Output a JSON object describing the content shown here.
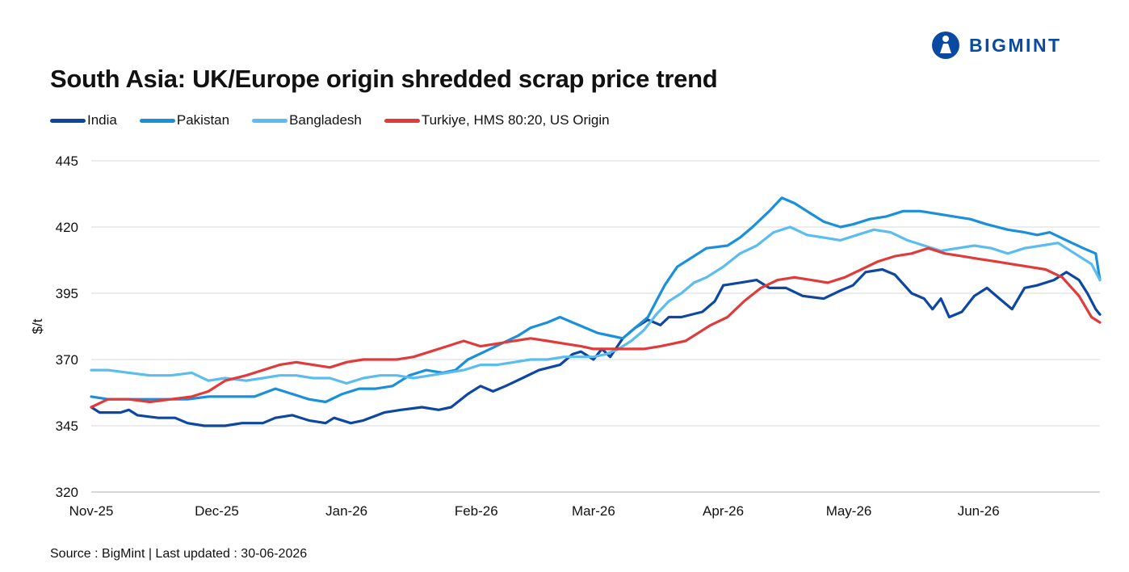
{
  "header": {
    "title": "South Asia: UK/Europe origin shredded scrap price trend",
    "brand": "BIGMINT"
  },
  "footer": {
    "source": "Source : BigMint | Last updated : 30-06-2026"
  },
  "colors": {
    "brand": "#0b4aa2",
    "grid": "#d9d9d9",
    "axis": "#bfbfbf"
  },
  "chart_data": {
    "type": "line",
    "title": "South Asia: UK/Europe origin shredded scrap price trend",
    "ylabel": "$/t",
    "xlabel": "",
    "ylim": [
      320,
      445
    ],
    "yticks": [
      320,
      345,
      370,
      395,
      420,
      445
    ],
    "x_start": "2025-11-01",
    "x_end": "2026-06-30",
    "month_ticks": [
      {
        "label": "Nov-25",
        "date": "2025-11-01"
      },
      {
        "label": "Dec-25",
        "date": "2025-12-01"
      },
      {
        "label": "Jan-26",
        "date": "2026-01-01"
      },
      {
        "label": "Feb-26",
        "date": "2026-02-01"
      },
      {
        "label": "Mar-26",
        "date": "2026-03-01"
      },
      {
        "label": "Apr-26",
        "date": "2026-04-01"
      },
      {
        "label": "May-26",
        "date": "2026-05-01"
      },
      {
        "label": "Jun-26",
        "date": "2026-06-01"
      }
    ],
    "grid": true,
    "legend_position": "top-left",
    "series": [
      {
        "name": "India",
        "color": "#0d47a1",
        "points": [
          [
            "2025-11-01",
            352
          ],
          [
            "2025-11-03",
            350
          ],
          [
            "2025-11-08",
            350
          ],
          [
            "2025-11-10",
            351
          ],
          [
            "2025-11-12",
            349
          ],
          [
            "2025-11-17",
            348
          ],
          [
            "2025-11-21",
            348
          ],
          [
            "2025-11-24",
            346
          ],
          [
            "2025-11-28",
            345
          ],
          [
            "2025-12-03",
            345
          ],
          [
            "2025-12-07",
            346
          ],
          [
            "2025-12-12",
            346
          ],
          [
            "2025-12-15",
            348
          ],
          [
            "2025-12-19",
            349
          ],
          [
            "2025-12-23",
            347
          ],
          [
            "2025-12-27",
            346
          ],
          [
            "2025-12-29",
            348
          ],
          [
            "2026-01-02",
            346
          ],
          [
            "2026-01-05",
            347
          ],
          [
            "2026-01-10",
            350
          ],
          [
            "2026-01-14",
            351
          ],
          [
            "2026-01-19",
            352
          ],
          [
            "2026-01-23",
            351
          ],
          [
            "2026-01-26",
            352
          ],
          [
            "2026-01-30",
            357
          ],
          [
            "2026-02-02",
            360
          ],
          [
            "2026-02-05",
            358
          ],
          [
            "2026-02-08",
            360
          ],
          [
            "2026-02-12",
            363
          ],
          [
            "2026-02-16",
            366
          ],
          [
            "2026-02-21",
            368
          ],
          [
            "2026-02-24",
            372
          ],
          [
            "2026-02-26",
            373
          ],
          [
            "2026-03-01",
            370
          ],
          [
            "2026-03-03",
            374
          ],
          [
            "2026-03-05",
            371
          ],
          [
            "2026-03-08",
            378
          ],
          [
            "2026-03-11",
            382
          ],
          [
            "2026-03-14",
            385
          ],
          [
            "2026-03-17",
            383
          ],
          [
            "2026-03-19",
            386
          ],
          [
            "2026-03-22",
            386
          ],
          [
            "2026-03-27",
            388
          ],
          [
            "2026-03-30",
            392
          ],
          [
            "2026-04-01",
            398
          ],
          [
            "2026-04-05",
            399
          ],
          [
            "2026-04-09",
            400
          ],
          [
            "2026-04-12",
            397
          ],
          [
            "2026-04-16",
            397
          ],
          [
            "2026-04-20",
            394
          ],
          [
            "2026-04-25",
            393
          ],
          [
            "2026-04-29",
            396
          ],
          [
            "2026-05-02",
            398
          ],
          [
            "2026-05-05",
            403
          ],
          [
            "2026-05-09",
            404
          ],
          [
            "2026-05-12",
            402
          ],
          [
            "2026-05-16",
            395
          ],
          [
            "2026-05-19",
            393
          ],
          [
            "2026-05-21",
            389
          ],
          [
            "2026-05-23",
            393
          ],
          [
            "2026-05-25",
            386
          ],
          [
            "2026-05-28",
            388
          ],
          [
            "2026-05-31",
            394
          ],
          [
            "2026-06-03",
            397
          ],
          [
            "2026-06-06",
            393
          ],
          [
            "2026-06-09",
            389
          ],
          [
            "2026-06-12",
            397
          ],
          [
            "2026-06-15",
            398
          ],
          [
            "2026-06-19",
            400
          ],
          [
            "2026-06-22",
            403
          ],
          [
            "2026-06-25",
            400
          ],
          [
            "2026-06-27",
            395
          ],
          [
            "2026-06-29",
            389
          ],
          [
            "2026-06-30",
            387
          ]
        ]
      },
      {
        "name": "Pakistan",
        "color": "#1a8fdb",
        "points": [
          [
            "2025-11-01",
            356
          ],
          [
            "2025-11-05",
            355
          ],
          [
            "2025-11-12",
            355
          ],
          [
            "2025-11-18",
            355
          ],
          [
            "2025-11-24",
            355
          ],
          [
            "2025-11-29",
            356
          ],
          [
            "2025-12-04",
            356
          ],
          [
            "2025-12-10",
            356
          ],
          [
            "2025-12-15",
            359
          ],
          [
            "2025-12-19",
            357
          ],
          [
            "2025-12-23",
            355
          ],
          [
            "2025-12-27",
            354
          ],
          [
            "2025-12-31",
            357
          ],
          [
            "2026-01-04",
            359
          ],
          [
            "2026-01-08",
            359
          ],
          [
            "2026-01-12",
            360
          ],
          [
            "2026-01-16",
            364
          ],
          [
            "2026-01-20",
            366
          ],
          [
            "2026-01-24",
            365
          ],
          [
            "2026-01-27",
            366
          ],
          [
            "2026-01-30",
            370
          ],
          [
            "2026-02-03",
            373
          ],
          [
            "2026-02-07",
            376
          ],
          [
            "2026-02-11",
            379
          ],
          [
            "2026-02-14",
            382
          ],
          [
            "2026-02-18",
            384
          ],
          [
            "2026-02-21",
            386
          ],
          [
            "2026-02-24",
            384
          ],
          [
            "2026-02-27",
            382
          ],
          [
            "2026-03-02",
            380
          ],
          [
            "2026-03-05",
            379
          ],
          [
            "2026-03-08",
            378
          ],
          [
            "2026-03-11",
            382
          ],
          [
            "2026-03-14",
            386
          ],
          [
            "2026-03-16",
            392
          ],
          [
            "2026-03-18",
            398
          ],
          [
            "2026-03-21",
            405
          ],
          [
            "2026-03-24",
            408
          ],
          [
            "2026-03-28",
            412
          ],
          [
            "2026-04-02",
            413
          ],
          [
            "2026-04-05",
            416
          ],
          [
            "2026-04-08",
            420
          ],
          [
            "2026-04-12",
            426
          ],
          [
            "2026-04-15",
            431
          ],
          [
            "2026-04-18",
            429
          ],
          [
            "2026-04-22",
            425
          ],
          [
            "2026-04-25",
            422
          ],
          [
            "2026-04-29",
            420
          ],
          [
            "2026-05-02",
            421
          ],
          [
            "2026-05-06",
            423
          ],
          [
            "2026-05-10",
            424
          ],
          [
            "2026-05-14",
            426
          ],
          [
            "2026-05-18",
            426
          ],
          [
            "2026-05-22",
            425
          ],
          [
            "2026-05-26",
            424
          ],
          [
            "2026-05-30",
            423
          ],
          [
            "2026-06-03",
            421
          ],
          [
            "2026-06-08",
            419
          ],
          [
            "2026-06-12",
            418
          ],
          [
            "2026-06-15",
            417
          ],
          [
            "2026-06-18",
            418
          ],
          [
            "2026-06-22",
            415
          ],
          [
            "2026-06-26",
            412
          ],
          [
            "2026-06-29",
            410
          ],
          [
            "2026-06-30",
            400
          ]
        ]
      },
      {
        "name": "Bangladesh",
        "color": "#5bbcf0",
        "points": [
          [
            "2025-11-01",
            366
          ],
          [
            "2025-11-05",
            366
          ],
          [
            "2025-11-10",
            365
          ],
          [
            "2025-11-15",
            364
          ],
          [
            "2025-11-20",
            364
          ],
          [
            "2025-11-25",
            365
          ],
          [
            "2025-11-29",
            362
          ],
          [
            "2025-12-03",
            363
          ],
          [
            "2025-12-08",
            362
          ],
          [
            "2025-12-12",
            363
          ],
          [
            "2025-12-16",
            364
          ],
          [
            "2025-12-20",
            364
          ],
          [
            "2025-12-24",
            363
          ],
          [
            "2025-12-28",
            363
          ],
          [
            "2026-01-01",
            361
          ],
          [
            "2026-01-05",
            363
          ],
          [
            "2026-01-09",
            364
          ],
          [
            "2026-01-13",
            364
          ],
          [
            "2026-01-17",
            363
          ],
          [
            "2026-01-21",
            364
          ],
          [
            "2026-01-25",
            365
          ],
          [
            "2026-01-29",
            366
          ],
          [
            "2026-02-02",
            368
          ],
          [
            "2026-02-06",
            368
          ],
          [
            "2026-02-10",
            369
          ],
          [
            "2026-02-14",
            370
          ],
          [
            "2026-02-18",
            370
          ],
          [
            "2026-02-22",
            371
          ],
          [
            "2026-02-26",
            371
          ],
          [
            "2026-03-01",
            371
          ],
          [
            "2026-03-04",
            372
          ],
          [
            "2026-03-07",
            374
          ],
          [
            "2026-03-10",
            377
          ],
          [
            "2026-03-13",
            381
          ],
          [
            "2026-03-16",
            387
          ],
          [
            "2026-03-19",
            392
          ],
          [
            "2026-03-22",
            395
          ],
          [
            "2026-03-25",
            399
          ],
          [
            "2026-03-28",
            401
          ],
          [
            "2026-04-01",
            405
          ],
          [
            "2026-04-05",
            410
          ],
          [
            "2026-04-09",
            413
          ],
          [
            "2026-04-13",
            418
          ],
          [
            "2026-04-17",
            420
          ],
          [
            "2026-04-21",
            417
          ],
          [
            "2026-04-25",
            416
          ],
          [
            "2026-04-29",
            415
          ],
          [
            "2026-05-03",
            417
          ],
          [
            "2026-05-07",
            419
          ],
          [
            "2026-05-11",
            418
          ],
          [
            "2026-05-15",
            415
          ],
          [
            "2026-05-19",
            413
          ],
          [
            "2026-05-23",
            411
          ],
          [
            "2026-05-27",
            412
          ],
          [
            "2026-05-31",
            413
          ],
          [
            "2026-06-04",
            412
          ],
          [
            "2026-06-08",
            410
          ],
          [
            "2026-06-12",
            412
          ],
          [
            "2026-06-16",
            413
          ],
          [
            "2026-06-20",
            414
          ],
          [
            "2026-06-24",
            410
          ],
          [
            "2026-06-28",
            406
          ],
          [
            "2026-06-30",
            400
          ]
        ]
      },
      {
        "name": "Turkiye, HMS 80:20, US Origin",
        "color": "#e03a3a",
        "points": [
          [
            "2025-11-01",
            352
          ],
          [
            "2025-11-05",
            355
          ],
          [
            "2025-11-10",
            355
          ],
          [
            "2025-11-15",
            354
          ],
          [
            "2025-11-20",
            355
          ],
          [
            "2025-11-25",
            356
          ],
          [
            "2025-11-29",
            358
          ],
          [
            "2025-12-03",
            362
          ],
          [
            "2025-12-08",
            364
          ],
          [
            "2025-12-12",
            366
          ],
          [
            "2025-12-16",
            368
          ],
          [
            "2025-12-20",
            369
          ],
          [
            "2025-12-24",
            368
          ],
          [
            "2025-12-28",
            367
          ],
          [
            "2026-01-01",
            369
          ],
          [
            "2026-01-05",
            370
          ],
          [
            "2026-01-09",
            370
          ],
          [
            "2026-01-13",
            370
          ],
          [
            "2026-01-17",
            371
          ],
          [
            "2026-01-21",
            373
          ],
          [
            "2026-01-25",
            375
          ],
          [
            "2026-01-29",
            377
          ],
          [
            "2026-02-02",
            375
          ],
          [
            "2026-02-06",
            376
          ],
          [
            "2026-02-10",
            377
          ],
          [
            "2026-02-14",
            378
          ],
          [
            "2026-02-18",
            377
          ],
          [
            "2026-02-22",
            376
          ],
          [
            "2026-02-26",
            375
          ],
          [
            "2026-03-01",
            374
          ],
          [
            "2026-03-05",
            374
          ],
          [
            "2026-03-09",
            374
          ],
          [
            "2026-03-13",
            374
          ],
          [
            "2026-03-17",
            375
          ],
          [
            "2026-03-20",
            376
          ],
          [
            "2026-03-23",
            377
          ],
          [
            "2026-03-26",
            380
          ],
          [
            "2026-03-29",
            383
          ],
          [
            "2026-04-02",
            386
          ],
          [
            "2026-04-06",
            392
          ],
          [
            "2026-04-10",
            397
          ],
          [
            "2026-04-14",
            400
          ],
          [
            "2026-04-18",
            401
          ],
          [
            "2026-04-22",
            400
          ],
          [
            "2026-04-26",
            399
          ],
          [
            "2026-04-30",
            401
          ],
          [
            "2026-05-04",
            404
          ],
          [
            "2026-05-08",
            407
          ],
          [
            "2026-05-12",
            409
          ],
          [
            "2026-05-16",
            410
          ],
          [
            "2026-05-20",
            412
          ],
          [
            "2026-05-24",
            410
          ],
          [
            "2026-05-28",
            409
          ],
          [
            "2026-06-01",
            408
          ],
          [
            "2026-06-05",
            407
          ],
          [
            "2026-06-09",
            406
          ],
          [
            "2026-06-13",
            405
          ],
          [
            "2026-06-17",
            404
          ],
          [
            "2026-06-21",
            401
          ],
          [
            "2026-06-25",
            394
          ],
          [
            "2026-06-28",
            386
          ],
          [
            "2026-06-30",
            384
          ]
        ]
      }
    ]
  }
}
